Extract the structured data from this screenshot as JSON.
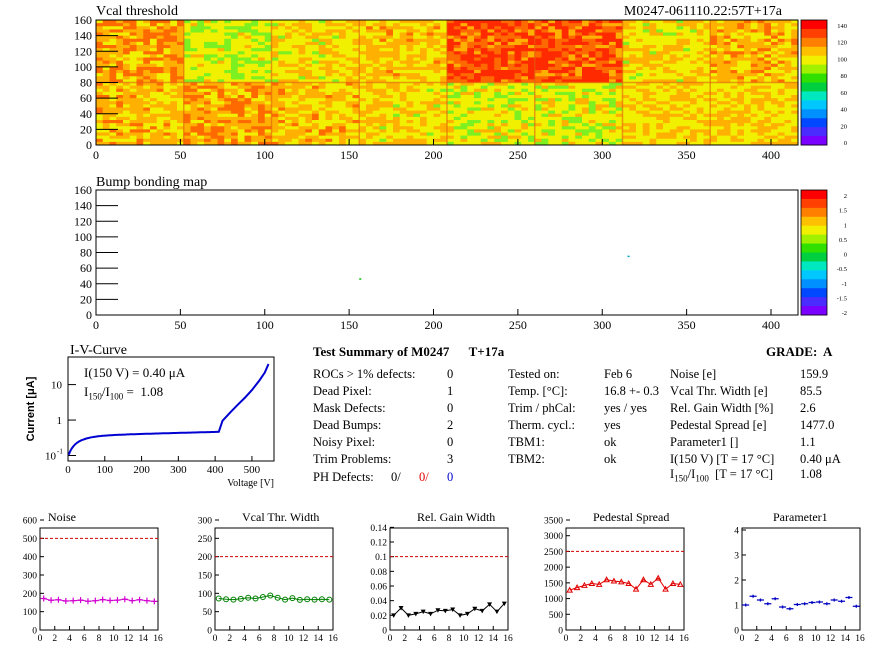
{
  "maps": {
    "vcal": {
      "title": "Vcal threshold",
      "id": "M0247-061110.22:57T+17a",
      "xlim": [
        0,
        416
      ],
      "ylim": [
        0,
        160
      ],
      "xticks": [
        0,
        50,
        100,
        150,
        200,
        250,
        300,
        350,
        400
      ],
      "yticks": [
        0,
        20,
        40,
        60,
        80,
        100,
        120,
        140,
        160
      ],
      "zticks": [
        "140",
        "120",
        "100",
        "80",
        "60",
        "40",
        "20",
        "0"
      ]
    },
    "bump": {
      "title": "Bump bonding map",
      "xlim": [
        0,
        416
      ],
      "ylim": [
        0,
        160
      ],
      "xticks": [
        0,
        50,
        100,
        150,
        200,
        250,
        300,
        350,
        400
      ],
      "yticks": [
        0,
        20,
        40,
        60,
        80,
        100,
        120,
        140,
        160
      ],
      "zticks": [
        "2",
        "1.5",
        "1",
        "0.5",
        "0",
        "-0.5",
        "-1",
        "-1.5",
        "-2"
      ]
    }
  },
  "iv": {
    "title": "I-V-Curve",
    "ylabel": "Current [μA]",
    "xlabel": "Voltage [V]",
    "note1": "I(150 V) = 0.40 μA",
    "note2_pre": "I",
    "note2_sub1": "150",
    "note2_mid": "/I",
    "note2_sub2": "100",
    "note2_post": " =  1.08",
    "xticks": [
      "0",
      "100",
      "200",
      "300",
      "400",
      "500"
    ],
    "yticks": [
      "10",
      "1",
      "10"
    ],
    "ytick_exp": "-1"
  },
  "summary": {
    "title": "Test Summary of M0247",
    "tag": "T+17a",
    "grade": "GRADE:  A",
    "defects": [
      {
        "label": "ROCs > 1% defects:",
        "value": "0"
      },
      {
        "label": "Dead Pixel:",
        "value": "1"
      },
      {
        "label": "Mask Defects:",
        "value": "0"
      },
      {
        "label": "Dead Bumps:",
        "value": "2"
      },
      {
        "label": "Noisy Pixel:",
        "value": "0"
      },
      {
        "label": "Trim Problems:",
        "value": "3"
      }
    ],
    "ph": {
      "label": "PH Defects:",
      "v1": "0/",
      "v2": "0/",
      "v3": "0",
      "c2": "#e00000",
      "c3": "#0000d0"
    },
    "tests": [
      {
        "label": "Tested on:",
        "value": "Feb 6"
      },
      {
        "label": "Temp. [°C]:",
        "value": "16.8 +- 0.3"
      },
      {
        "label": "Trim / phCal:",
        "value": "yes / yes"
      },
      {
        "label": "Therm. cycl.:",
        "value": "yes"
      },
      {
        "label": "TBM1:",
        "value": "ok"
      },
      {
        "label": "TBM2:",
        "value": "ok"
      }
    ],
    "params": [
      {
        "label": "Noise [e]",
        "value": "159.9"
      },
      {
        "label": "Vcal Thr. Width [e]",
        "value": "85.5"
      },
      {
        "label": "Rel. Gain Width [%]",
        "value": "2.6"
      },
      {
        "label": "Pedestal Spread [e]",
        "value": "1477.0"
      },
      {
        "label": "Parameter1 []",
        "value": "1.1"
      },
      {
        "label": "I(150 V) [T = 17 °C]",
        "value": "0.40 μA"
      }
    ],
    "ratio": {
      "pre": "I",
      "sub1": "150",
      "mid": "/I",
      "sub2": "100",
      "post": "  [T = 17 °C]",
      "value": "1.08"
    }
  },
  "chart_data": [
    {
      "type": "line",
      "title": "Noise",
      "x": [
        0,
        1,
        2,
        3,
        4,
        5,
        6,
        7,
        8,
        9,
        10,
        11,
        12,
        13,
        14,
        15
      ],
      "series": [
        {
          "values": [
            172,
            162,
            165,
            158,
            160,
            163,
            157,
            160,
            166,
            161,
            163,
            168,
            160,
            165,
            160,
            156
          ]
        }
      ],
      "ylim": [
        0,
        600
      ],
      "yticks": [
        0,
        100,
        200,
        300,
        400,
        500,
        600
      ],
      "xticks": [
        0,
        2,
        4,
        6,
        8,
        10,
        12,
        14,
        16
      ],
      "limit": 500,
      "color": "#d000d0",
      "marker": "plus"
    },
    {
      "type": "line",
      "title": "Vcal Thr. Width",
      "x": [
        0,
        1,
        2,
        3,
        4,
        5,
        6,
        7,
        8,
        9,
        10,
        11,
        12,
        13,
        14,
        15
      ],
      "series": [
        {
          "values": [
            86,
            84,
            83,
            85,
            88,
            86,
            90,
            94,
            88,
            83,
            87,
            82,
            84,
            83,
            84,
            83
          ]
        }
      ],
      "ylim": [
        0,
        300
      ],
      "yticks": [
        0,
        50,
        100,
        150,
        200,
        250,
        300
      ],
      "xticks": [
        0,
        2,
        4,
        6,
        8,
        10,
        12,
        14,
        16
      ],
      "limit": 200,
      "color": "#008000",
      "marker": "circle"
    },
    {
      "type": "line",
      "title": "Rel. Gain Width",
      "x": [
        0,
        1,
        2,
        3,
        4,
        5,
        6,
        7,
        8,
        9,
        10,
        11,
        12,
        13,
        14,
        15
      ],
      "series": [
        {
          "values": [
            0.02,
            0.03,
            0.02,
            0.022,
            0.025,
            0.022,
            0.027,
            0.026,
            0.028,
            0.02,
            0.022,
            0.029,
            0.026,
            0.035,
            0.025,
            0.036
          ]
        }
      ],
      "ylim": [
        0,
        0.15
      ],
      "yticks": [
        0,
        0.02,
        0.04,
        0.06,
        0.08,
        0.1,
        0.12,
        0.14
      ],
      "xticks": [
        0,
        2,
        4,
        6,
        8,
        10,
        12,
        14,
        16
      ],
      "limit": 0.1,
      "color": "#000000",
      "marker": "tri-down"
    },
    {
      "type": "line",
      "title": "Pedestal Spread",
      "x": [
        0,
        1,
        2,
        3,
        4,
        5,
        6,
        7,
        8,
        9,
        10,
        11,
        12,
        13,
        14,
        15
      ],
      "series": [
        {
          "values": [
            1270,
            1350,
            1420,
            1480,
            1450,
            1600,
            1560,
            1530,
            1480,
            1300,
            1600,
            1450,
            1650,
            1300,
            1480,
            1450
          ]
        }
      ],
      "ylim": [
        0,
        3500
      ],
      "yticks": [
        0,
        500,
        1000,
        1500,
        2000,
        2500,
        3000,
        3500
      ],
      "xticks": [
        0,
        2,
        4,
        6,
        8,
        10,
        12,
        14,
        16
      ],
      "limit": 2500,
      "color": "#e00000",
      "marker": "tri-up"
    },
    {
      "type": "line",
      "title": "Parameter1",
      "x": [
        0,
        1,
        2,
        3,
        4,
        5,
        6,
        7,
        8,
        9,
        10,
        11,
        12,
        13,
        14,
        15
      ],
      "series": [
        {
          "values": [
            1.0,
            1.35,
            1.2,
            1.05,
            1.25,
            0.92,
            0.85,
            1.02,
            1.05,
            1.1,
            1.12,
            1.05,
            1.2,
            1.15,
            1.3,
            0.95
          ]
        }
      ],
      "ylim": [
        0,
        4.4
      ],
      "yticks": [
        0,
        1,
        2,
        3,
        4
      ],
      "xticks": [
        0,
        2,
        4,
        6,
        8,
        10,
        12,
        14,
        16
      ],
      "limit": null,
      "color": "#0000c0",
      "marker": "bar"
    }
  ]
}
